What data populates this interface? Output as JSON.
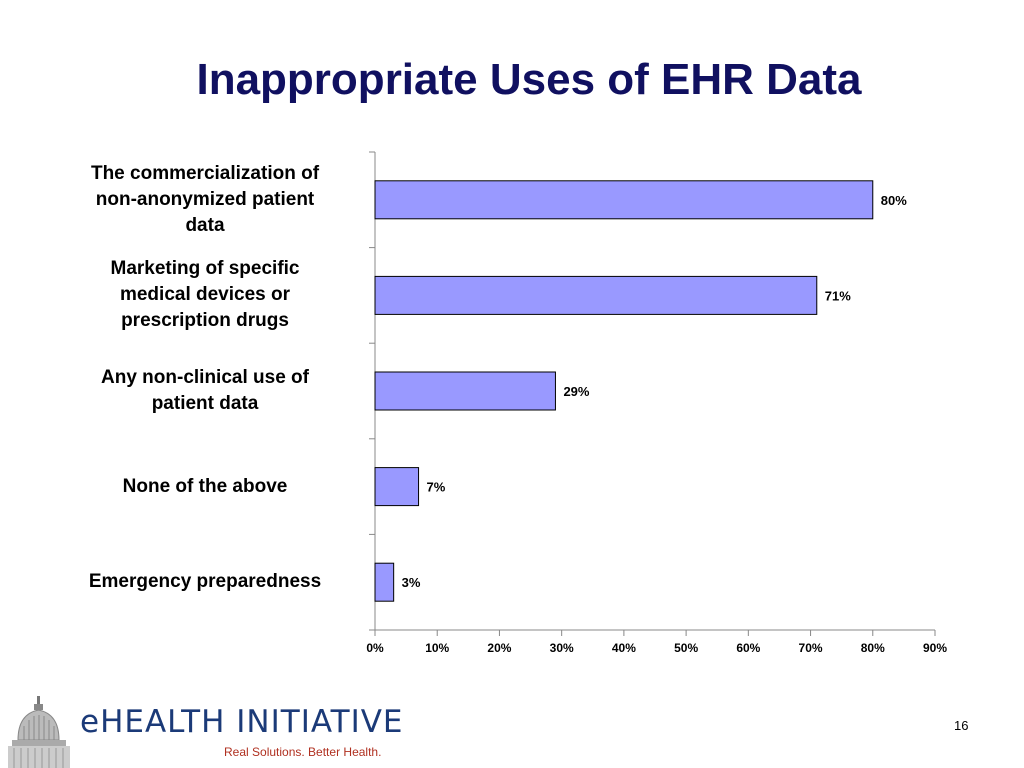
{
  "slide": {
    "title": "Inappropriate Uses of EHR Data",
    "page_number": "16"
  },
  "logo": {
    "name": "eHEALTH INITIATIVE",
    "tagline": "Real Solutions. Better Health."
  },
  "chart_data": {
    "type": "bar",
    "orientation": "horizontal",
    "title": "Inappropriate Uses of EHR Data",
    "categories": [
      "The commercialization of non-anonymized patient data",
      "Marketing of specific medical devices or prescription drugs",
      "Any non-clinical use of patient data",
      "None of the above",
      "Emergency preparedness"
    ],
    "category_lines": [
      [
        "The commercialization of",
        "non-anonymized patient",
        "data"
      ],
      [
        "Marketing of specific",
        "medical devices or",
        "prescription drugs"
      ],
      [
        "Any non-clinical use of",
        "patient data"
      ],
      [
        "None of the above"
      ],
      [
        "Emergency preparedness"
      ]
    ],
    "values": [
      80,
      71,
      29,
      7,
      3
    ],
    "data_labels": [
      "80%",
      "71%",
      "29%",
      "7%",
      "3%"
    ],
    "xlim": [
      0,
      90
    ],
    "xticks": [
      0,
      10,
      20,
      30,
      40,
      50,
      60,
      70,
      80,
      90
    ],
    "xtick_labels": [
      "0%",
      "10%",
      "20%",
      "30%",
      "40%",
      "50%",
      "60%",
      "70%",
      "80%",
      "90%"
    ],
    "grid": false,
    "legend": "none",
    "colors": {
      "bar_fill": "#9999ff",
      "bar_stroke": "#000000",
      "title": "#101060"
    }
  }
}
